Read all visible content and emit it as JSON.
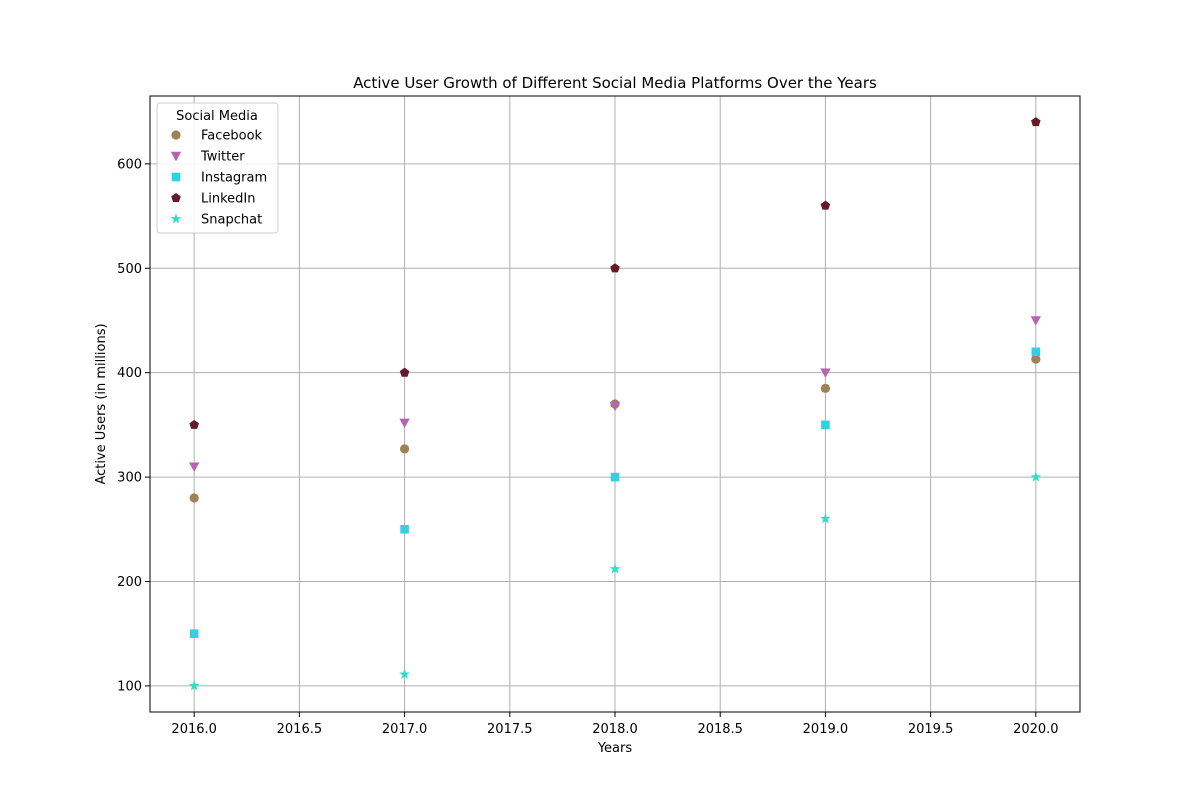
{
  "chart_data": {
    "type": "scatter",
    "title": "Active User Growth of Different Social Media Platforms Over the Years",
    "xlabel": "Years",
    "ylabel": "Active Users (in millions)",
    "xlim": [
      2015.79,
      2020.21
    ],
    "ylim": [
      75,
      665
    ],
    "x_ticks": [
      2016.0,
      2016.5,
      2017.0,
      2017.5,
      2018.0,
      2018.5,
      2019.0,
      2019.5,
      2020.0
    ],
    "x_tick_labels": [
      "2016.0",
      "2016.5",
      "2017.0",
      "2017.5",
      "2018.0",
      "2018.5",
      "2019.0",
      "2019.5",
      "2020.0"
    ],
    "y_ticks": [
      100,
      200,
      300,
      400,
      500,
      600
    ],
    "y_tick_labels": [
      "100",
      "200",
      "300",
      "400",
      "500",
      "600"
    ],
    "grid": true,
    "legend": {
      "title": "Social Media",
      "placement": "top-left"
    },
    "x": [
      2016,
      2017,
      2018,
      2019,
      2020
    ],
    "series": [
      {
        "name": "Facebook",
        "marker": "circle",
        "color": "#a08155",
        "values": [
          280,
          327,
          370,
          385,
          413
        ]
      },
      {
        "name": "Twitter",
        "marker": "triangle-down",
        "color": "#b565b0",
        "values": [
          310,
          352,
          368,
          400,
          450
        ]
      },
      {
        "name": "Instagram",
        "marker": "square",
        "color": "#33d0e0",
        "values": [
          150,
          250,
          300,
          350,
          420
        ]
      },
      {
        "name": "LinkedIn",
        "marker": "pentagon",
        "color": "#661a28",
        "values": [
          350,
          400,
          500,
          560,
          640
        ]
      },
      {
        "name": "Snapchat",
        "marker": "star",
        "color": "#2de0c8",
        "values": [
          100,
          111,
          212,
          260,
          300
        ]
      }
    ]
  }
}
